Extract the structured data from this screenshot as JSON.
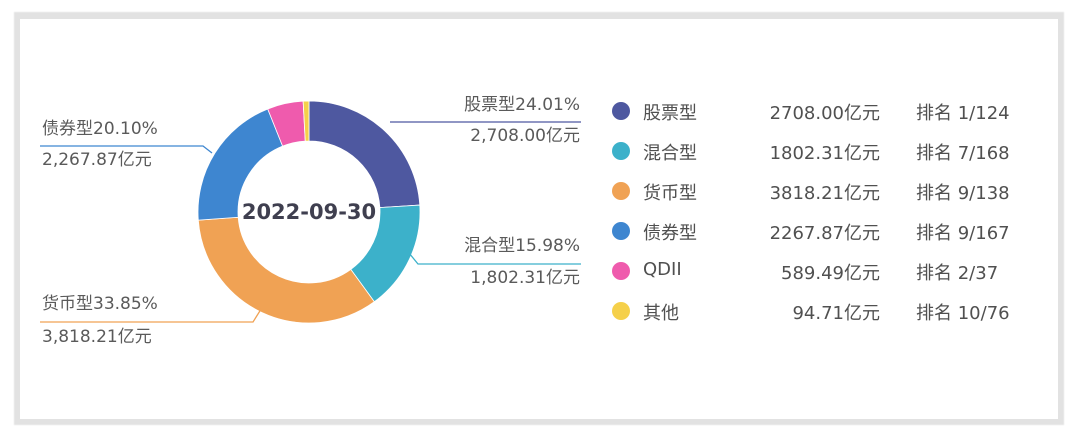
{
  "chart_data": {
    "type": "pie",
    "variant": "donut",
    "center_label": "2022-09-30",
    "unit": "亿元",
    "categories": [
      "股票型",
      "混合型",
      "货币型",
      "债券型",
      "QDII",
      "其他"
    ],
    "values": [
      2708.0,
      1802.31,
      3818.21,
      2267.87,
      589.49,
      94.71
    ],
    "percentages": [
      24.01,
      15.98,
      33.85,
      20.1,
      5.23,
      0.84
    ],
    "colors": [
      "#4e58a0",
      "#3cb1ca",
      "#f0a254",
      "#3e86d0",
      "#ef5bad",
      "#f5d04a"
    ],
    "ranks": [
      "1/124",
      "7/168",
      "9/138",
      "9/167",
      "2/37",
      "10/76"
    ],
    "legend_position": "right"
  },
  "center": {
    "label": "2022-09-30"
  },
  "callouts": [
    {
      "line1": "股票型24.01%",
      "line2": "2,708.00亿元"
    },
    {
      "line1": "混合型15.98%",
      "line2": "1,802.31亿元"
    },
    {
      "line1": "货币型33.85%",
      "line2": "3,818.21亿元"
    },
    {
      "line1": "债券型20.10%",
      "line2": "2,267.87亿元"
    }
  ],
  "legend": [
    {
      "name": "股票型",
      "value": "2708.00亿元",
      "rank": "排名 1/124",
      "color": "#4e58a0"
    },
    {
      "name": "混合型",
      "value": "1802.31亿元",
      "rank": "排名 7/168",
      "color": "#3cb1ca"
    },
    {
      "name": "货币型",
      "value": "3818.21亿元",
      "rank": "排名 9/138",
      "color": "#f0a254"
    },
    {
      "name": "债券型",
      "value": "2267.87亿元",
      "rank": "排名 9/167",
      "color": "#3e86d0"
    },
    {
      "name": "QDII",
      "value": "589.49亿元",
      "rank": "排名 2/37",
      "color": "#ef5bad"
    },
    {
      "name": "其他",
      "value": "94.71亿元",
      "rank": "排名 10/76",
      "color": "#f5d04a"
    }
  ]
}
